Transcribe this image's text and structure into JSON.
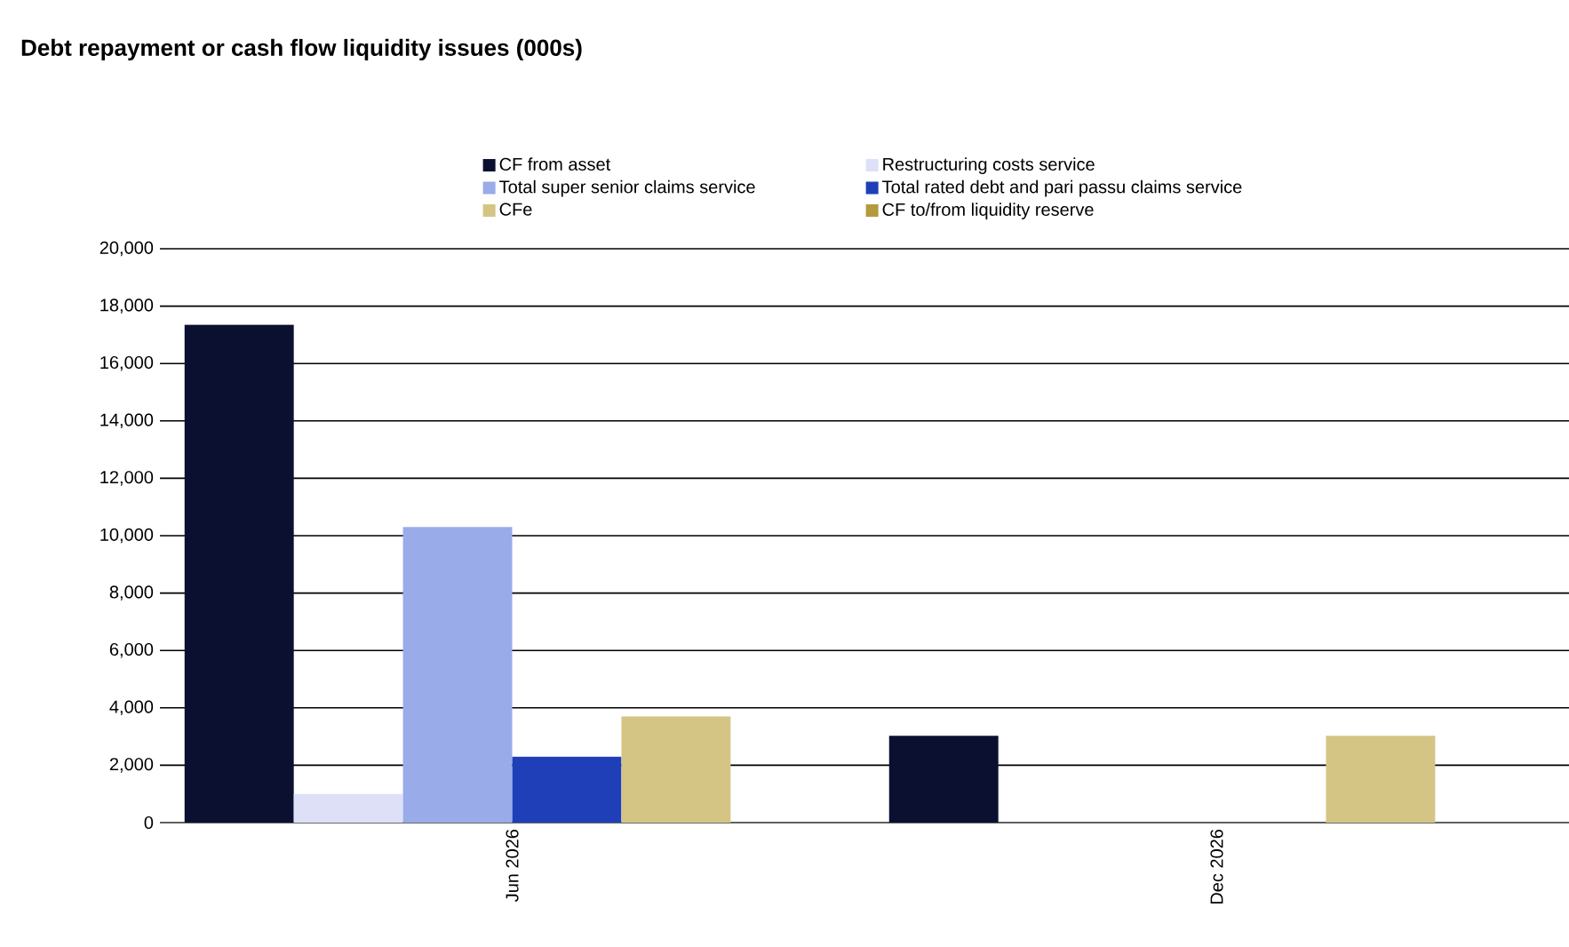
{
  "chart_data": {
    "type": "bar",
    "title": "Debt repayment or cash flow liquidity issues (000s)",
    "categories": [
      "Jun 2026",
      "Dec 2026"
    ],
    "series": [
      {
        "name": "CF from asset",
        "color": "#0b1030",
        "values": [
          17350,
          3030
        ]
      },
      {
        "name": "Restructuring costs service",
        "color": "#dde0f7",
        "values": [
          1000,
          0
        ]
      },
      {
        "name": "Total super senior claims service",
        "color": "#9aabea",
        "values": [
          10300,
          0
        ]
      },
      {
        "name": "Total rated debt and pari passu claims service",
        "color": "#1f3fb8",
        "values": [
          2300,
          0
        ]
      },
      {
        "name": "CFe",
        "color": "#d4c585",
        "values": [
          3700,
          3030
        ]
      },
      {
        "name": "CF to/from liquidity reserve",
        "color": "#b39a3c",
        "values": [
          0,
          0
        ]
      }
    ],
    "ylim": [
      0,
      20000
    ],
    "yticks": [
      0,
      {
        "value": 2000,
        "label": "2,000"
      },
      {
        "value": 4000,
        "label": "4,000"
      },
      {
        "value": 6000,
        "label": "6,000"
      },
      {
        "value": 8000,
        "label": "8,000"
      },
      {
        "value": 10000,
        "label": "10,000"
      },
      {
        "value": 12000,
        "label": "12,000"
      },
      {
        "value": 14000,
        "label": "14,000"
      },
      {
        "value": 16000,
        "label": "16,000"
      },
      {
        "value": 18000,
        "label": "18,000"
      },
      {
        "value": 20000,
        "label": "20,000"
      }
    ],
    "grid": "y",
    "legend": "top"
  }
}
